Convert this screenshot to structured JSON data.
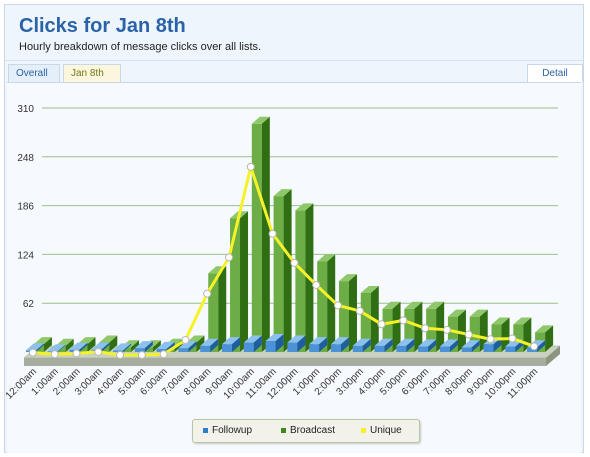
{
  "header": {
    "title": "Clicks for Jan 8th",
    "subtitle": "Hourly breakdown of message clicks over all lists."
  },
  "tabs": {
    "overall": "Overall",
    "jan8": "Jan 8th",
    "detail": "Detail"
  },
  "legend": {
    "followup": "Followup",
    "broadcast": "Broadcast",
    "unique": "Unique"
  },
  "colors": {
    "followup": "#2e7fc9",
    "broadcast": "#3e8a1a",
    "unique": "#f5f227",
    "grid": "#9bc08c"
  },
  "chart_data": {
    "type": "bar",
    "ylim": [
      0,
      310
    ],
    "yticks": [
      0,
      62,
      124,
      186,
      248,
      310
    ],
    "grid": true,
    "legend_position": "bottom",
    "categories": [
      "12:00am",
      "1:00am",
      "2:00am",
      "3:00am",
      "4:00am",
      "5:00am",
      "6:00am",
      "7:00am",
      "8:00am",
      "9:00am",
      "10:00am",
      "11:00am",
      "12:00pm",
      "1:00pm",
      "2:00pm",
      "3:00pm",
      "4:00pm",
      "5:00pm",
      "6:00pm",
      "7:00pm",
      "8:00pm",
      "9:00pm",
      "10:00pm",
      "11:00pm"
    ],
    "series": [
      {
        "name": "Followup",
        "type": "bar",
        "values": [
          2,
          1,
          3,
          3,
          2,
          5,
          4,
          5,
          8,
          10,
          12,
          14,
          12,
          10,
          10,
          8,
          8,
          8,
          7,
          7,
          6,
          10,
          7,
          6
        ]
      },
      {
        "name": "Broadcast",
        "type": "bar",
        "values": [
          10,
          8,
          10,
          12,
          6,
          6,
          8,
          12,
          100,
          170,
          290,
          198,
          180,
          115,
          90,
          75,
          55,
          55,
          55,
          45,
          45,
          35,
          35,
          25
        ]
      },
      {
        "name": "Unique",
        "type": "line",
        "values": [
          3,
          1,
          2,
          4,
          0,
          0,
          1,
          19,
          78,
          124,
          239,
          154,
          117,
          89,
          63,
          56,
          39,
          44,
          34,
          32,
          26,
          20,
          21,
          11
        ]
      }
    ]
  }
}
